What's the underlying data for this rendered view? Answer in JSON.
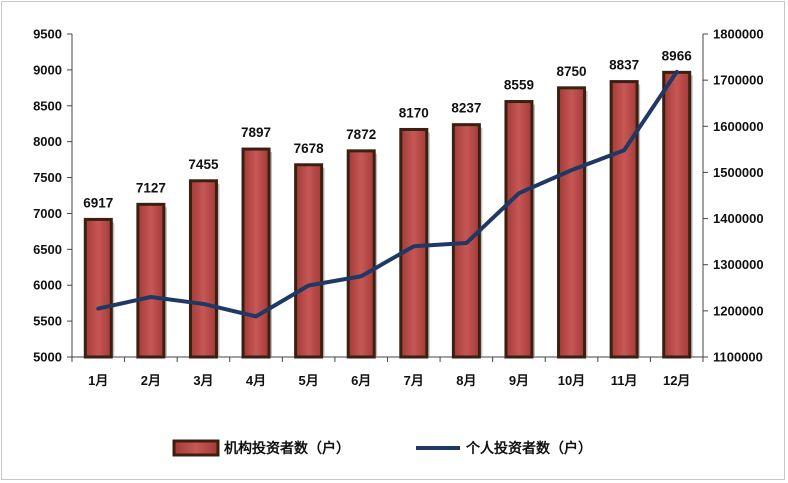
{
  "chart_data": {
    "type": "bar",
    "categories": [
      "1月",
      "2月",
      "3月",
      "4月",
      "5月",
      "6月",
      "7月",
      "8月",
      "9月",
      "10月",
      "11月",
      "12月"
    ],
    "series": [
      {
        "name": "机构投资者数（户）",
        "type": "bar",
        "axis": "left",
        "color": "#c0504d",
        "values": [
          6917,
          7127,
          7455,
          7897,
          7678,
          7872,
          8170,
          8237,
          8559,
          8750,
          8837,
          8966
        ]
      },
      {
        "name": "个人投资者数（户）",
        "type": "line",
        "axis": "right",
        "color": "#1f3864",
        "values": [
          1205000,
          1230000,
          1215000,
          1188000,
          1255000,
          1275000,
          1340000,
          1347000,
          1455000,
          1505000,
          1548000,
          1718000
        ]
      }
    ],
    "y_left": {
      "min": 5000,
      "max": 9500,
      "step": 500
    },
    "y_right": {
      "min": 1100000,
      "max": 1800000,
      "step": 100000
    },
    "grid": false,
    "legend_position": "bottom"
  }
}
